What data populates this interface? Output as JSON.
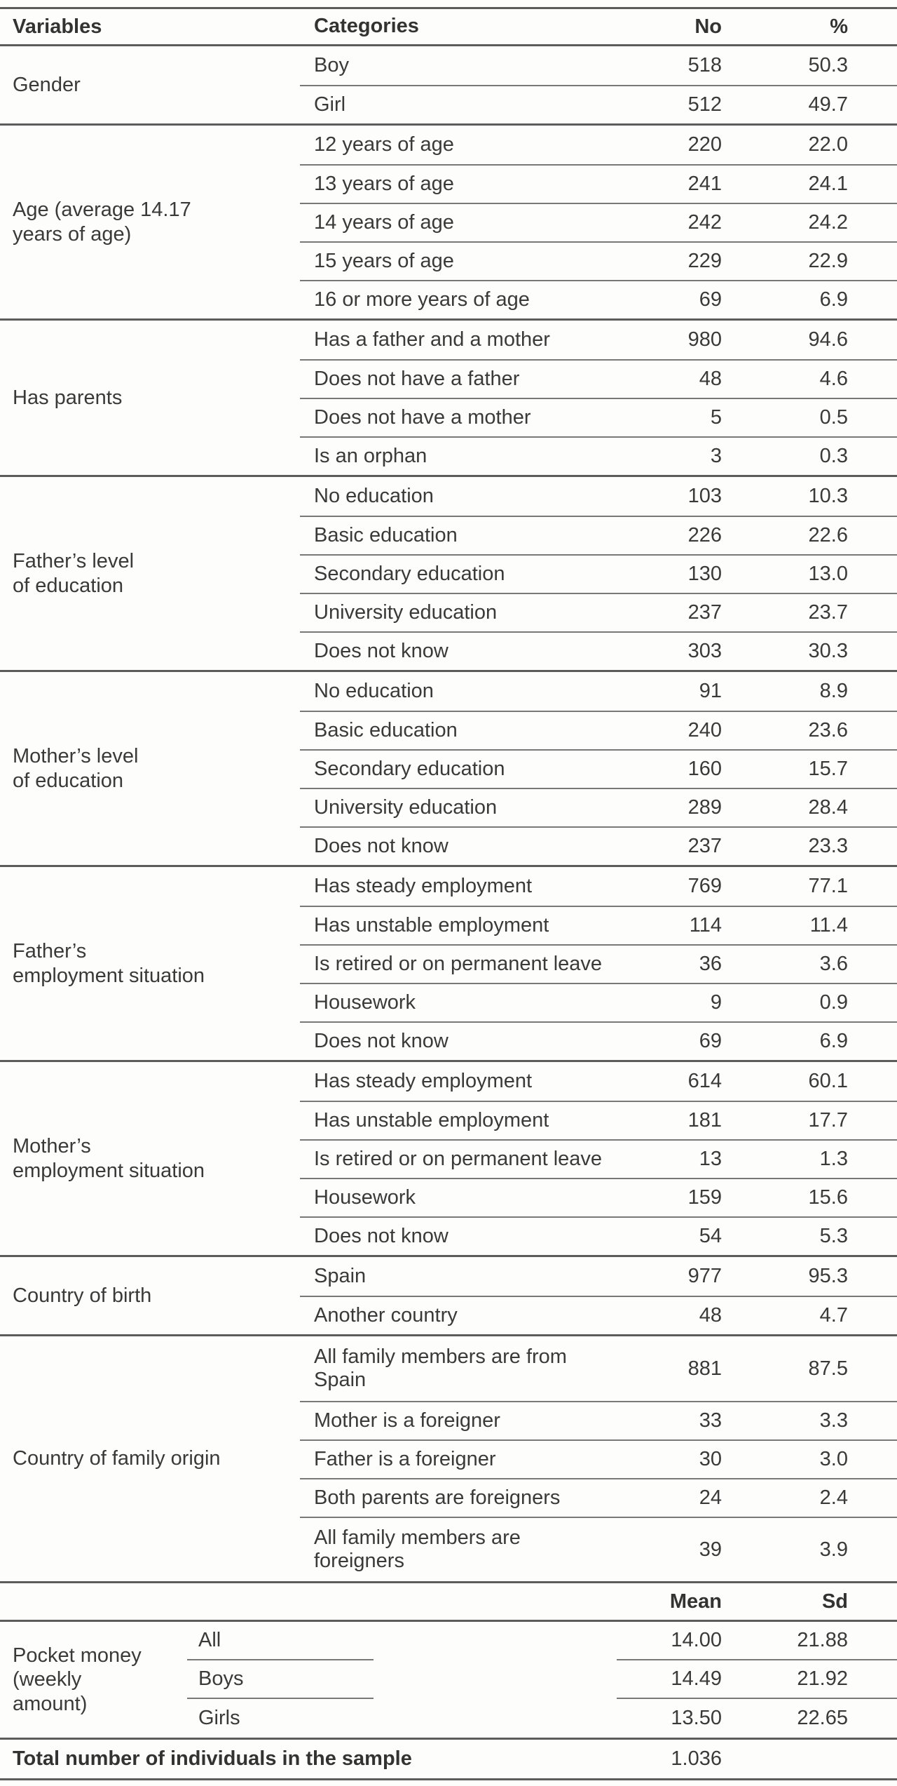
{
  "table": {
    "header": {
      "variables": "Variables",
      "categories": "Categories",
      "no": "No",
      "pct": "%"
    },
    "sections": [
      {
        "variable": "Gender",
        "rows": [
          {
            "cat": "Boy",
            "no": "518",
            "pct": "50.3"
          },
          {
            "cat": "Girl",
            "no": "512",
            "pct": "49.7"
          }
        ]
      },
      {
        "variable": "Age (average 14.17\n years of age)",
        "rows": [
          {
            "cat": "12 years of age",
            "no": "220",
            "pct": "22.0"
          },
          {
            "cat": "13 years of age",
            "no": "241",
            "pct": "24.1"
          },
          {
            "cat": "14 years of age",
            "no": "242",
            "pct": "24.2"
          },
          {
            "cat": "15 years of age",
            "no": "229",
            "pct": "22.9"
          },
          {
            "cat": "16 or more years of age",
            "no": "69",
            "pct": "6.9"
          }
        ]
      },
      {
        "variable": "Has parents",
        "rows": [
          {
            "cat": "Has a father and a mother",
            "no": "980",
            "pct": "94.6"
          },
          {
            "cat": "Does not have a father",
            "no": "48",
            "pct": "4.6"
          },
          {
            "cat": "Does not have a mother",
            "no": "5",
            "pct": "0.5"
          },
          {
            "cat": "Is an orphan",
            "no": "3",
            "pct": "0.3"
          }
        ]
      },
      {
        "variable": "Father’s level\nof education",
        "rows": [
          {
            "cat": "No education",
            "no": "103",
            "pct": "10.3"
          },
          {
            "cat": "Basic education",
            "no": "226",
            "pct": "22.6"
          },
          {
            "cat": "Secondary education",
            "no": "130",
            "pct": "13.0"
          },
          {
            "cat": "University education",
            "no": "237",
            "pct": "23.7"
          },
          {
            "cat": "Does not know",
            "no": "303",
            "pct": "30.3"
          }
        ]
      },
      {
        "variable": "Mother’s level\nof education",
        "rows": [
          {
            "cat": "No education",
            "no": "91",
            "pct": "8.9"
          },
          {
            "cat": "Basic education",
            "no": "240",
            "pct": "23.6"
          },
          {
            "cat": "Secondary education",
            "no": "160",
            "pct": "15.7"
          },
          {
            "cat": "University education",
            "no": "289",
            "pct": "28.4"
          },
          {
            "cat": "Does not know",
            "no": "237",
            "pct": "23.3"
          }
        ]
      },
      {
        "variable": "Father’s\nemployment situation",
        "rows": [
          {
            "cat": "Has steady employment",
            "no": "769",
            "pct": "77.1"
          },
          {
            "cat": "Has unstable employment",
            "no": "114",
            "pct": "11.4"
          },
          {
            "cat": "Is retired or on permanent leave",
            "no": "36",
            "pct": "3.6"
          },
          {
            "cat": "Housework",
            "no": "9",
            "pct": "0.9"
          },
          {
            "cat": "Does not know",
            "no": "69",
            "pct": "6.9"
          }
        ]
      },
      {
        "variable": "Mother’s\nemployment situation",
        "rows": [
          {
            "cat": "Has steady employment",
            "no": "614",
            "pct": "60.1"
          },
          {
            "cat": "Has unstable employment",
            "no": "181",
            "pct": "17.7"
          },
          {
            "cat": "Is retired or on permanent leave",
            "no": "13",
            "pct": "1.3"
          },
          {
            "cat": "Housework",
            "no": "159",
            "pct": "15.6"
          },
          {
            "cat": "Does not know",
            "no": "54",
            "pct": "5.3"
          }
        ]
      },
      {
        "variable": "Country of birth",
        "rows": [
          {
            "cat": "Spain",
            "no": "977",
            "pct": "95.3"
          },
          {
            "cat": "Another country",
            "no": "48",
            "pct": "4.7"
          }
        ]
      },
      {
        "variable": "Country of family origin",
        "rows": [
          {
            "cat": "All family members are from\nSpain",
            "no": "881",
            "pct": "87.5"
          },
          {
            "cat": "Mother is a foreigner",
            "no": "33",
            "pct": "3.3"
          },
          {
            "cat": "Father is a foreigner",
            "no": "30",
            "pct": "3.0"
          },
          {
            "cat": "Both parents are foreigners",
            "no": "24",
            "pct": "2.4"
          },
          {
            "cat": "All family members are\nforeigners",
            "no": "39",
            "pct": "3.9"
          }
        ]
      }
    ],
    "stats_header": {
      "mean": "Mean",
      "sd": "Sd"
    },
    "pocket": {
      "variable": "Pocket money\n(weekly\namount)",
      "rows": [
        {
          "label": "All",
          "mean": "14.00",
          "sd": "21.88"
        },
        {
          "label": "Boys",
          "mean": "14.49",
          "sd": "21.92"
        },
        {
          "label": "Girls",
          "mean": "13.50",
          "sd": "22.65"
        }
      ]
    },
    "total": {
      "label": "Total number of individuals in the sample",
      "value": "1.036"
    }
  }
}
